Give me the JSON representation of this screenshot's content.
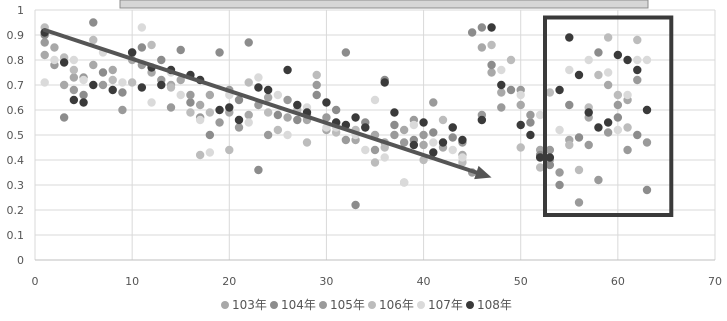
{
  "chart_data": {
    "type": "scatter",
    "xlim": [
      0,
      70
    ],
    "ylim": [
      0,
      1
    ],
    "x_ticks": [
      "0",
      "10",
      "20",
      "30",
      "40",
      "50",
      "60",
      "70"
    ],
    "y_ticks": [
      "0",
      "0.1",
      "0.2",
      "0.3",
      "0.4",
      "0.5",
      "0.6",
      "0.7",
      "0.8",
      "0.9",
      "1"
    ],
    "grid": true,
    "legend_position": "bottom",
    "series": [
      {
        "name": "103年",
        "color": "#a8a8a8",
        "points": [
          [
            1,
            0.82
          ],
          [
            2,
            0.85
          ],
          [
            3,
            0.7
          ],
          [
            4,
            0.73
          ],
          [
            6,
            0.78
          ],
          [
            8,
            0.76
          ],
          [
            10,
            0.8
          ],
          [
            12,
            0.75
          ],
          [
            14,
            0.7
          ],
          [
            15,
            0.72
          ],
          [
            17,
            0.62
          ],
          [
            18,
            0.66
          ],
          [
            20,
            0.59
          ],
          [
            22,
            0.58
          ],
          [
            24,
            0.65
          ],
          [
            26,
            0.57
          ],
          [
            28,
            0.56
          ],
          [
            30,
            0.52
          ],
          [
            31,
            0.55
          ],
          [
            33,
            0.48
          ],
          [
            35,
            0.5
          ],
          [
            36,
            0.47
          ],
          [
            38,
            0.52
          ],
          [
            40,
            0.46
          ],
          [
            42,
            0.45
          ],
          [
            44,
            0.42
          ],
          [
            46,
            0.85
          ],
          [
            47,
            0.75
          ],
          [
            48,
            0.67
          ],
          [
            50,
            0.62
          ],
          [
            52,
            0.44
          ],
          [
            53,
            0.4
          ],
          [
            55,
            0.48
          ],
          [
            57,
            0.57
          ],
          [
            59,
            0.7
          ],
          [
            61,
            0.64
          ],
          [
            63,
            0.6
          ]
        ]
      },
      {
        "name": "104年",
        "color": "#8c8c8c",
        "points": [
          [
            1,
            0.9
          ],
          [
            3,
            0.57
          ],
          [
            5,
            0.66
          ],
          [
            6,
            0.95
          ],
          [
            7,
            0.75
          ],
          [
            9,
            0.67
          ],
          [
            11,
            0.85
          ],
          [
            13,
            0.8
          ],
          [
            15,
            0.84
          ],
          [
            16,
            0.63
          ],
          [
            18,
            0.5
          ],
          [
            19,
            0.83
          ],
          [
            21,
            0.64
          ],
          [
            22,
            0.87
          ],
          [
            23,
            0.36
          ],
          [
            25,
            0.58
          ],
          [
            27,
            0.56
          ],
          [
            29,
            0.66
          ],
          [
            31,
            0.6
          ],
          [
            32,
            0.83
          ],
          [
            33,
            0.22
          ],
          [
            34,
            0.55
          ],
          [
            36,
            0.72
          ],
          [
            37,
            0.54
          ],
          [
            39,
            0.48
          ],
          [
            41,
            0.51
          ],
          [
            43,
            0.49
          ],
          [
            45,
            0.91
          ],
          [
            46,
            0.93
          ],
          [
            47,
            0.78
          ],
          [
            49,
            0.68
          ],
          [
            51,
            0.55
          ],
          [
            52,
            0.42
          ],
          [
            53,
            0.38
          ],
          [
            54,
            0.3
          ],
          [
            55,
            0.62
          ],
          [
            56,
            0.49
          ],
          [
            58,
            0.83
          ],
          [
            60,
            0.57
          ],
          [
            62,
            0.5
          ],
          [
            63,
            0.28
          ]
        ]
      },
      {
        "name": "105年",
        "color": "#9a9a9a",
        "points": [
          [
            1,
            0.87
          ],
          [
            2,
            0.78
          ],
          [
            4,
            0.68
          ],
          [
            5,
            0.73
          ],
          [
            7,
            0.7
          ],
          [
            9,
            0.6
          ],
          [
            10,
            0.83
          ],
          [
            11,
            0.78
          ],
          [
            13,
            0.72
          ],
          [
            14,
            0.61
          ],
          [
            16,
            0.66
          ],
          [
            17,
            0.57
          ],
          [
            19,
            0.55
          ],
          [
            20,
            0.68
          ],
          [
            21,
            0.53
          ],
          [
            23,
            0.62
          ],
          [
            24,
            0.5
          ],
          [
            26,
            0.64
          ],
          [
            28,
            0.58
          ],
          [
            29,
            0.7
          ],
          [
            30,
            0.57
          ],
          [
            32,
            0.48
          ],
          [
            34,
            0.53
          ],
          [
            35,
            0.44
          ],
          [
            37,
            0.5
          ],
          [
            38,
            0.47
          ],
          [
            39,
            0.56
          ],
          [
            40,
            0.5
          ],
          [
            41,
            0.63
          ],
          [
            43,
            0.53
          ],
          [
            44,
            0.47
          ],
          [
            45,
            0.35
          ],
          [
            46,
            0.58
          ],
          [
            48,
            0.61
          ],
          [
            50,
            0.68
          ],
          [
            51,
            0.58
          ],
          [
            53,
            0.44
          ],
          [
            54,
            0.35
          ],
          [
            56,
            0.23
          ],
          [
            57,
            0.46
          ],
          [
            58,
            0.32
          ],
          [
            59,
            0.51
          ],
          [
            60,
            0.62
          ],
          [
            61,
            0.44
          ],
          [
            62,
            0.72
          ],
          [
            63,
            0.47
          ]
        ]
      },
      {
        "name": "106年",
        "color": "#bcbcbc",
        "points": [
          [
            1,
            0.93
          ],
          [
            3,
            0.81
          ],
          [
            4,
            0.76
          ],
          [
            6,
            0.88
          ],
          [
            8,
            0.72
          ],
          [
            10,
            0.71
          ],
          [
            12,
            0.86
          ],
          [
            14,
            0.69
          ],
          [
            16,
            0.59
          ],
          [
            17,
            0.42
          ],
          [
            18,
            0.59
          ],
          [
            20,
            0.44
          ],
          [
            21,
            0.56
          ],
          [
            22,
            0.71
          ],
          [
            24,
            0.59
          ],
          [
            25,
            0.52
          ],
          [
            27,
            0.6
          ],
          [
            28,
            0.47
          ],
          [
            29,
            0.74
          ],
          [
            31,
            0.51
          ],
          [
            33,
            0.52
          ],
          [
            35,
            0.39
          ],
          [
            36,
            0.45
          ],
          [
            38,
            0.31
          ],
          [
            40,
            0.4
          ],
          [
            42,
            0.56
          ],
          [
            44,
            0.39
          ],
          [
            46,
            0.56
          ],
          [
            47,
            0.86
          ],
          [
            49,
            0.8
          ],
          [
            50,
            0.45
          ],
          [
            52,
            0.37
          ],
          [
            53,
            0.67
          ],
          [
            55,
            0.46
          ],
          [
            56,
            0.36
          ],
          [
            57,
            0.61
          ],
          [
            58,
            0.74
          ],
          [
            59,
            0.89
          ],
          [
            60,
            0.66
          ],
          [
            61,
            0.53
          ],
          [
            62,
            0.88
          ]
        ]
      },
      {
        "name": "107年",
        "color": "#dadada",
        "points": [
          [
            1,
            0.71
          ],
          [
            2,
            0.8
          ],
          [
            4,
            0.8
          ],
          [
            5,
            0.72
          ],
          [
            7,
            0.83
          ],
          [
            9,
            0.71
          ],
          [
            11,
            0.93
          ],
          [
            12,
            0.63
          ],
          [
            14,
            0.75
          ],
          [
            15,
            0.66
          ],
          [
            17,
            0.56
          ],
          [
            18,
            0.43
          ],
          [
            20,
            0.66
          ],
          [
            22,
            0.55
          ],
          [
            23,
            0.73
          ],
          [
            25,
            0.66
          ],
          [
            26,
            0.5
          ],
          [
            28,
            0.61
          ],
          [
            30,
            0.53
          ],
          [
            31,
            0.53
          ],
          [
            33,
            0.5
          ],
          [
            34,
            0.44
          ],
          [
            35,
            0.64
          ],
          [
            36,
            0.41
          ],
          [
            38,
            0.31
          ],
          [
            39,
            0.54
          ],
          [
            41,
            0.47
          ],
          [
            43,
            0.44
          ],
          [
            44,
            0.41
          ],
          [
            47,
            0.93
          ],
          [
            48,
            0.76
          ],
          [
            50,
            0.66
          ],
          [
            52,
            0.58
          ],
          [
            54,
            0.52
          ],
          [
            55,
            0.76
          ],
          [
            57,
            0.8
          ],
          [
            59,
            0.75
          ],
          [
            60,
            0.52
          ],
          [
            61,
            0.66
          ],
          [
            62,
            0.8
          ],
          [
            63,
            0.8
          ]
        ]
      },
      {
        "name": "108年",
        "color": "#3a3a3a",
        "points": [
          [
            1,
            0.91
          ],
          [
            3,
            0.79
          ],
          [
            4,
            0.64
          ],
          [
            5,
            0.63
          ],
          [
            6,
            0.7
          ],
          [
            8,
            0.68
          ],
          [
            10,
            0.83
          ],
          [
            11,
            0.69
          ],
          [
            12,
            0.77
          ],
          [
            13,
            0.7
          ],
          [
            14,
            0.76
          ],
          [
            16,
            0.74
          ],
          [
            17,
            0.72
          ],
          [
            19,
            0.6
          ],
          [
            20,
            0.61
          ],
          [
            21,
            0.56
          ],
          [
            23,
            0.69
          ],
          [
            24,
            0.68
          ],
          [
            26,
            0.76
          ],
          [
            27,
            0.62
          ],
          [
            28,
            0.59
          ],
          [
            30,
            0.63
          ],
          [
            31,
            0.55
          ],
          [
            32,
            0.54
          ],
          [
            33,
            0.57
          ],
          [
            34,
            0.53
          ],
          [
            36,
            0.71
          ],
          [
            37,
            0.59
          ],
          [
            39,
            0.46
          ],
          [
            40,
            0.55
          ],
          [
            41,
            0.43
          ],
          [
            42,
            0.47
          ],
          [
            43,
            0.53
          ],
          [
            44,
            0.48
          ],
          [
            46,
            0.56
          ],
          [
            47,
            0.93
          ],
          [
            48,
            0.7
          ],
          [
            50,
            0.54
          ],
          [
            51,
            0.5
          ],
          [
            52,
            0.41
          ],
          [
            53,
            0.41
          ],
          [
            54,
            0.68
          ],
          [
            55,
            0.89
          ],
          [
            56,
            0.74
          ],
          [
            57,
            0.59
          ],
          [
            58,
            0.53
          ],
          [
            59,
            0.55
          ],
          [
            60,
            0.82
          ],
          [
            61,
            0.8
          ],
          [
            62,
            0.76
          ],
          [
            63,
            0.6
          ]
        ]
      }
    ],
    "annotations": {
      "trend_arrow": {
        "from": [
          1,
          0.92
        ],
        "to": [
          47,
          0.33
        ],
        "color": "#555555"
      },
      "highlight_box": {
        "x_range": [
          52.5,
          65.5
        ],
        "y_range": [
          0.18,
          0.97
        ],
        "color": "#3a3a3a"
      }
    }
  }
}
